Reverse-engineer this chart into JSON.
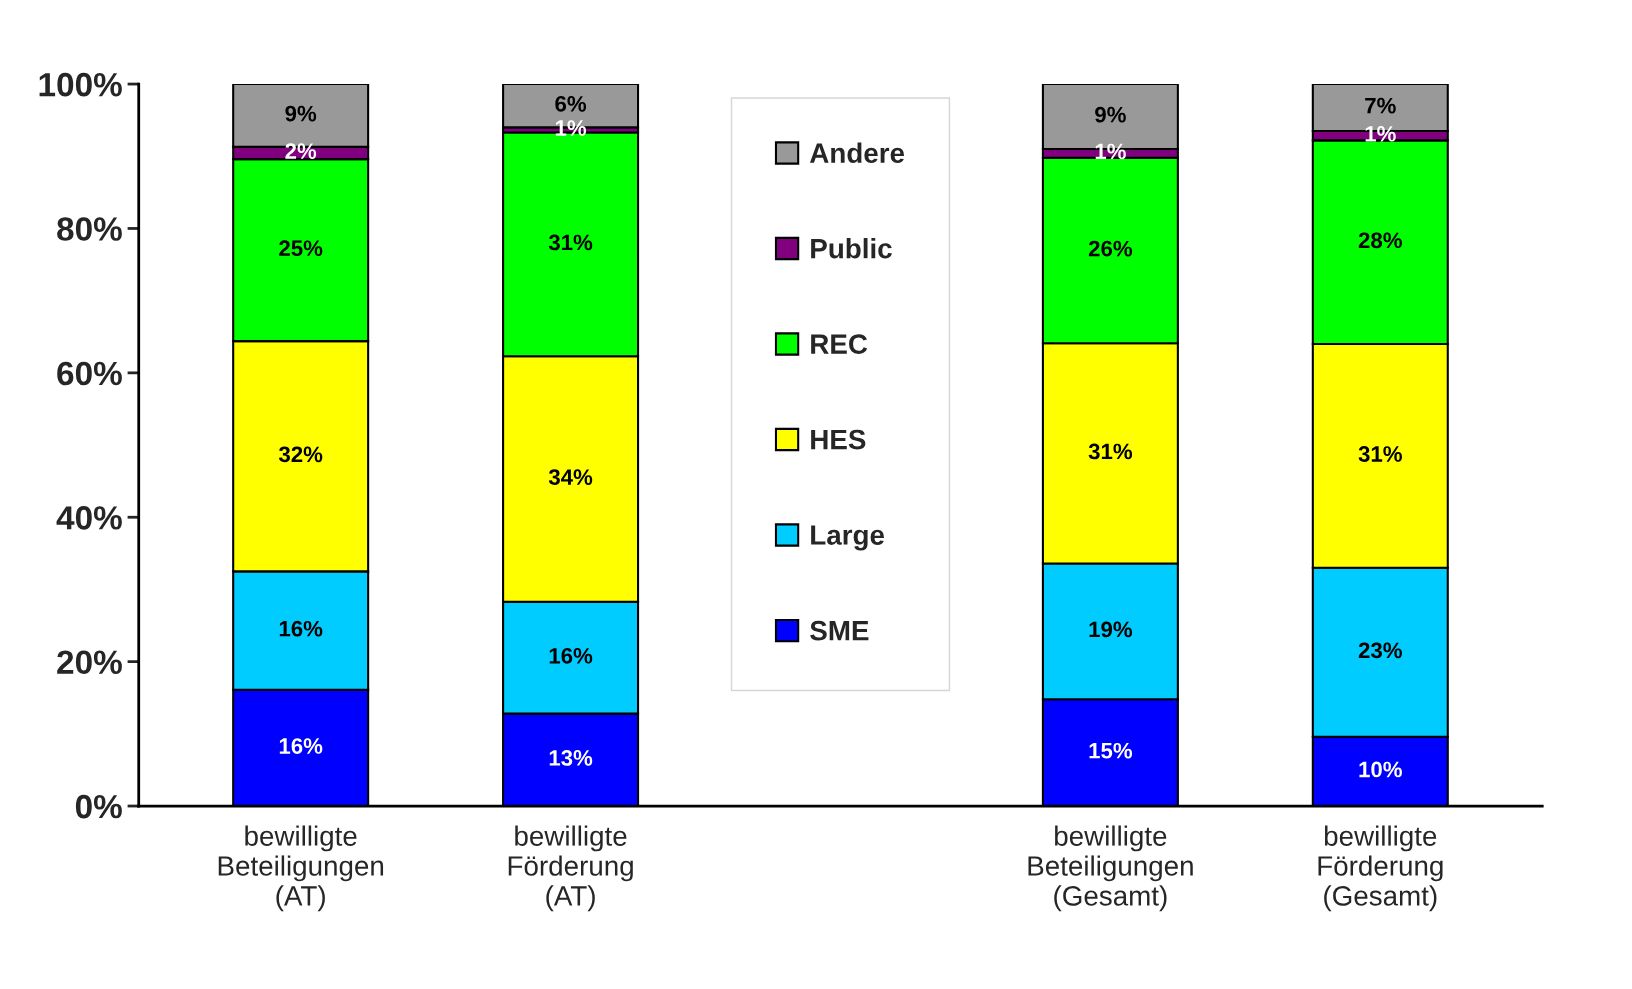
{
  "chart_data": {
    "type": "bar",
    "stacked": true,
    "categories": [
      "bewilligte\nBeteiligungen\n(AT)",
      "bewilligte\nFörderung\n(AT)",
      null,
      "bewilligte\nBeteiligungen\n(Gesamt)",
      "bewilligte\nFörderung\n(Gesamt)"
    ],
    "series": [
      {
        "name": "SME",
        "color": "#0000ff",
        "values": [
          16.1,
          12.8,
          null,
          14.8,
          9.6
        ],
        "value_labels": [
          "16%",
          "13%",
          null,
          "15%",
          "10%"
        ]
      },
      {
        "name": "Large",
        "color": "#00ccff",
        "values": [
          16.4,
          15.5,
          null,
          18.8,
          23.4
        ],
        "value_labels": [
          "16%",
          "16%",
          null,
          "19%",
          "23%"
        ]
      },
      {
        "name": "HES",
        "color": "#ffff00",
        "values": [
          31.9,
          34.0,
          null,
          30.5,
          31.0
        ],
        "value_labels": [
          "32%",
          "34%",
          null,
          "31%",
          "31%"
        ]
      },
      {
        "name": "REC",
        "color": "#00ff00",
        "values": [
          25.2,
          31.0,
          null,
          25.7,
          28.2
        ],
        "value_labels": [
          "25%",
          "31%",
          null,
          "26%",
          "28%"
        ]
      },
      {
        "name": "Public",
        "color": "#800080",
        "values": [
          1.7,
          0.7,
          null,
          1.2,
          1.3
        ],
        "value_labels": [
          "2%",
          "1%",
          null,
          "1%",
          "1%"
        ]
      },
      {
        "name": "Andere",
        "color": "#999999",
        "values": [
          8.7,
          6.0,
          null,
          9.0,
          6.5
        ],
        "value_labels": [
          "9%",
          "6%",
          null,
          "9%",
          "7%"
        ]
      }
    ],
    "ylim": [
      0,
      100
    ],
    "yticks": [
      {
        "value": 0,
        "label": "0%"
      },
      {
        "value": 20,
        "label": "20%"
      },
      {
        "value": 40,
        "label": "40%"
      },
      {
        "value": 60,
        "label": "60%"
      },
      {
        "value": 80,
        "label": "80%"
      },
      {
        "value": 100,
        "label": "100%"
      }
    ],
    "grid": false,
    "legend": "top"
  }
}
